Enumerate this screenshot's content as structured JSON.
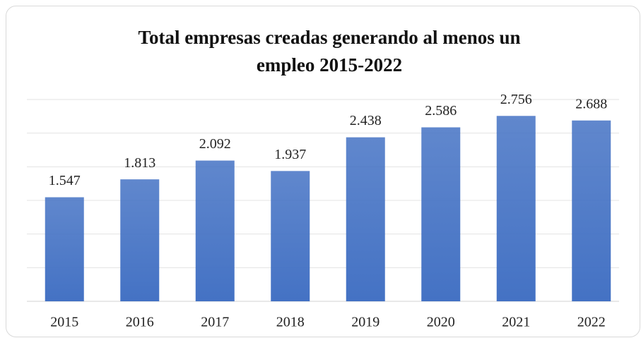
{
  "chart_data": {
    "type": "bar",
    "title": [
      "Total empresas creadas generando al menos un",
      "empleo 2015-2022"
    ],
    "categories": [
      "2015",
      "2016",
      "2017",
      "2018",
      "2019",
      "2020",
      "2021",
      "2022"
    ],
    "values": [
      1547,
      1813,
      2092,
      1937,
      2438,
      2586,
      2756,
      2688
    ],
    "value_labels": [
      "1.547",
      "1.813",
      "2.092",
      "1.937",
      "2.438",
      "2.586",
      "2.756",
      "2.688"
    ],
    "color": "#4472c4",
    "ylim": [
      0,
      3000
    ],
    "yticks": [
      0,
      500,
      1000,
      1500,
      2000,
      2500,
      3000
    ],
    "grid": true
  }
}
